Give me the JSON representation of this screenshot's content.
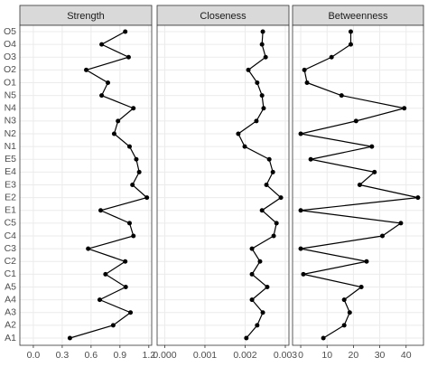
{
  "chart_data": [
    {
      "type": "line",
      "title": "Strength",
      "categories": [
        "A1",
        "A2",
        "A3",
        "A4",
        "A5",
        "C1",
        "C2",
        "C3",
        "C4",
        "C5",
        "E1",
        "E2",
        "E3",
        "E4",
        "E5",
        "N1",
        "N2",
        "N3",
        "N4",
        "N5",
        "O1",
        "O2",
        "O3",
        "O4",
        "O5"
      ],
      "values": [
        0.38,
        0.83,
        1.01,
        0.69,
        0.96,
        0.75,
        0.955,
        0.57,
        1.04,
        1.0,
        0.7,
        1.18,
        1.03,
        1.1,
        1.07,
        1.0,
        0.84,
        0.88,
        1.04,
        0.71,
        0.775,
        0.55,
        0.99,
        0.71,
        0.955
      ],
      "xlim": [
        -0.14,
        1.23
      ],
      "xticks": [
        {
          "value": 0,
          "label": "0.0"
        },
        {
          "value": 0.3,
          "label": "0.3"
        },
        {
          "value": 0.6,
          "label": "0.6"
        },
        {
          "value": 0.9,
          "label": "0.9"
        },
        {
          "value": 1.2,
          "label": "1.2"
        }
      ],
      "color": "#000000",
      "grid": true
    },
    {
      "type": "line",
      "title": "Closeness",
      "values": [
        0.00203,
        0.0023,
        0.00244,
        0.00217,
        0.00255,
        0.00217,
        0.00237,
        0.00217,
        0.00271,
        0.00278,
        0.00242,
        0.00289,
        0.00253,
        0.00269,
        0.0026,
        0.00199,
        0.00183,
        0.00228,
        0.00246,
        0.00242,
        0.0023,
        0.00208,
        0.00251,
        0.00242,
        0.00244
      ],
      "xlim": [
        -0.00019,
        0.00309
      ],
      "xticks": [
        {
          "value": 0,
          "label": "0.000"
        },
        {
          "value": 0.001,
          "label": "0.001"
        },
        {
          "value": 0.002,
          "label": "0.002"
        },
        {
          "value": 0.003,
          "label": "0.003"
        }
      ],
      "color": "#000000",
      "grid": true
    },
    {
      "type": "line",
      "title": "Betweenness",
      "values": [
        8.6,
        16.5,
        18.6,
        16.5,
        23,
        1,
        25,
        0,
        31,
        38,
        0,
        44.5,
        22.4,
        28,
        3.8,
        27,
        0,
        21,
        39.3,
        15.5,
        2.4,
        1.4,
        11.7,
        19,
        19
      ],
      "xlim": [
        -3.1,
        46.6
      ],
      "xticks": [
        0,
        10,
        20,
        30,
        40
      ],
      "color": "#000000",
      "grid": true
    }
  ]
}
